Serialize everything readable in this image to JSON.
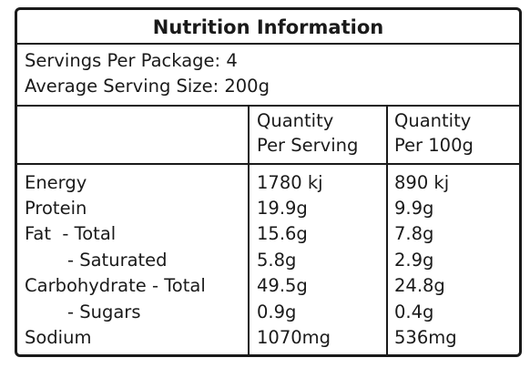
{
  "title": "Nutrition Information",
  "servings_per_package": "Servings Per Package: 4",
  "average_serving_size": "Average Serving Size: 200g",
  "columns": {
    "per_serving": [
      "Quantity",
      "Per Serving"
    ],
    "per_100g": [
      "Quantity",
      "Per 100g"
    ]
  },
  "rows": [
    {
      "name": "Energy",
      "per_serving": "1780 kj",
      "per_100g": "890 kj"
    },
    {
      "name": "Protein",
      "per_serving": "19.9g",
      "per_100g": "9.9g"
    },
    {
      "name": "Fat  - Total",
      "per_serving": "15.6g",
      "per_100g": "7.8g"
    },
    {
      "name": "- Saturated",
      "per_serving": "5.8g",
      "per_100g": "2.9g"
    },
    {
      "name": "Carbohydrate - Total",
      "per_serving": "49.5g",
      "per_100g": "24.8g"
    },
    {
      "name": "- Sugars",
      "per_serving": "0.9g",
      "per_100g": "0.4g"
    },
    {
      "name": "Sodium",
      "per_serving": "1070mg",
      "per_100g": "536mg"
    }
  ]
}
